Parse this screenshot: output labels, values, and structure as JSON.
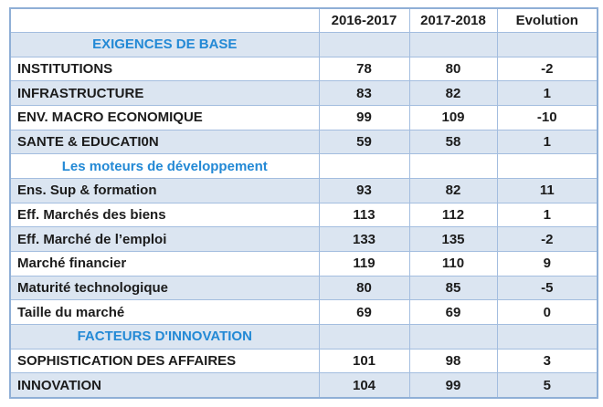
{
  "colors": {
    "band_row_bg": "#dbe5f1",
    "grid_border": "#a3bddf",
    "outer_border": "#8fafd6",
    "section_text": "#2389d5",
    "body_text": "#1c1c1c"
  },
  "table": {
    "columns": [
      "",
      "2016-2017",
      "2017-2018",
      "Evolution"
    ],
    "rows": [
      {
        "type": "section",
        "label": "EXIGENCES DE BASE",
        "values": [
          "",
          "",
          ""
        ]
      },
      {
        "type": "data",
        "label": "INSTITUTIONS",
        "values": [
          "78",
          "80",
          "-2"
        ]
      },
      {
        "type": "data",
        "label": "INFRASTRUCTURE",
        "values": [
          "83",
          "82",
          "1"
        ]
      },
      {
        "type": "data",
        "label": "ENV. MACRO ECONOMIQUE",
        "values": [
          "99",
          "109",
          "-10"
        ]
      },
      {
        "type": "data",
        "label": "SANTE & EDUCATI0N",
        "values": [
          "59",
          "58",
          "1"
        ]
      },
      {
        "type": "section",
        "label": "Les moteurs de développement",
        "values": [
          "",
          "",
          ""
        ]
      },
      {
        "type": "data",
        "label": "Ens. Sup & formation",
        "values": [
          "93",
          "82",
          "11"
        ]
      },
      {
        "type": "data",
        "label": "Eff. Marchés des biens",
        "values": [
          "113",
          "112",
          "1"
        ]
      },
      {
        "type": "data",
        "label": "Eff. Marché de l’emploi",
        "values": [
          "133",
          "135",
          "-2"
        ]
      },
      {
        "type": "data",
        "label": "Marché financier",
        "values": [
          "119",
          "110",
          "9"
        ]
      },
      {
        "type": "data",
        "label": "Maturité technologique",
        "values": [
          "80",
          "85",
          "-5"
        ]
      },
      {
        "type": "data",
        "label": "Taille du marché",
        "values": [
          "69",
          "69",
          "0"
        ]
      },
      {
        "type": "section",
        "label": "FACTEURS D'INNOVATION",
        "values": [
          "",
          "",
          ""
        ]
      },
      {
        "type": "data",
        "label": "SOPHISTICATION DES AFFAIRES",
        "values": [
          "101",
          "98",
          "3"
        ]
      },
      {
        "type": "data",
        "label": "INNOVATION",
        "values": [
          "104",
          "99",
          "5"
        ]
      }
    ]
  },
  "chart_data": {
    "type": "table",
    "title": "",
    "categories": [
      "INSTITUTIONS",
      "INFRASTRUCTURE",
      "ENV. MACRO ECONOMIQUE",
      "SANTE & EDUCATI0N",
      "Ens. Sup & formation",
      "Eff. Marchés des biens",
      "Eff. Marché de l’emploi",
      "Marché financier",
      "Maturité technologique",
      "Taille du marché",
      "SOPHISTICATION DES AFFAIRES",
      "INNOVATION"
    ],
    "series": [
      {
        "name": "2016-2017",
        "values": [
          78,
          83,
          99,
          59,
          93,
          113,
          133,
          119,
          80,
          69,
          101,
          104
        ]
      },
      {
        "name": "2017-2018",
        "values": [
          80,
          82,
          109,
          58,
          82,
          112,
          135,
          110,
          85,
          69,
          98,
          99
        ]
      },
      {
        "name": "Evolution",
        "values": [
          -2,
          1,
          -10,
          1,
          11,
          1,
          -2,
          9,
          -5,
          0,
          3,
          5
        ]
      }
    ],
    "groups": [
      "EXIGENCES DE BASE",
      "Les moteurs de développement",
      "FACTEURS D'INNOVATION"
    ]
  }
}
